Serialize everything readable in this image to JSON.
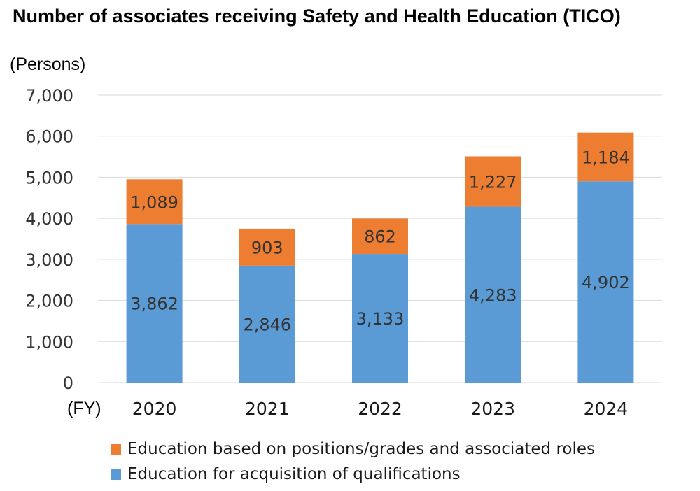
{
  "title": "Number of associates receiving Safety and Health Education (TICO)",
  "colors": {
    "positions": "#ed7d31",
    "qualifications": "#5b9bd5",
    "grid": "#d9d9d9"
  },
  "chart_data": {
    "type": "bar",
    "stacked": true,
    "title": "Number of associates receiving Safety and Health Education (TICO)",
    "ylabel": "(Persons)",
    "xlabel": "(FY)",
    "categories": [
      "2020",
      "2021",
      "2022",
      "2023",
      "2024"
    ],
    "ylim": [
      0,
      7000
    ],
    "yticks": [
      0,
      1000,
      2000,
      3000,
      4000,
      5000,
      6000,
      7000
    ],
    "ytick_labels": [
      "0",
      "1,000",
      "2,000",
      "3,000",
      "4,000",
      "5,000",
      "6,000",
      "7,000"
    ],
    "grid": true,
    "legend_position": "bottom",
    "series": [
      {
        "name": "Education for acquisition of qualifications",
        "color": "#5b9bd5",
        "values": [
          3862,
          2846,
          3133,
          4283,
          4902
        ],
        "labels": [
          "3,862",
          "2,846",
          "3,133",
          "4,283",
          "4,902"
        ]
      },
      {
        "name": "Education based on positions/grades and associated roles",
        "color": "#ed7d31",
        "values": [
          1089,
          903,
          862,
          1227,
          1184
        ],
        "labels": [
          "1,089",
          "903",
          "862",
          "1,227",
          "1,184"
        ]
      }
    ]
  }
}
